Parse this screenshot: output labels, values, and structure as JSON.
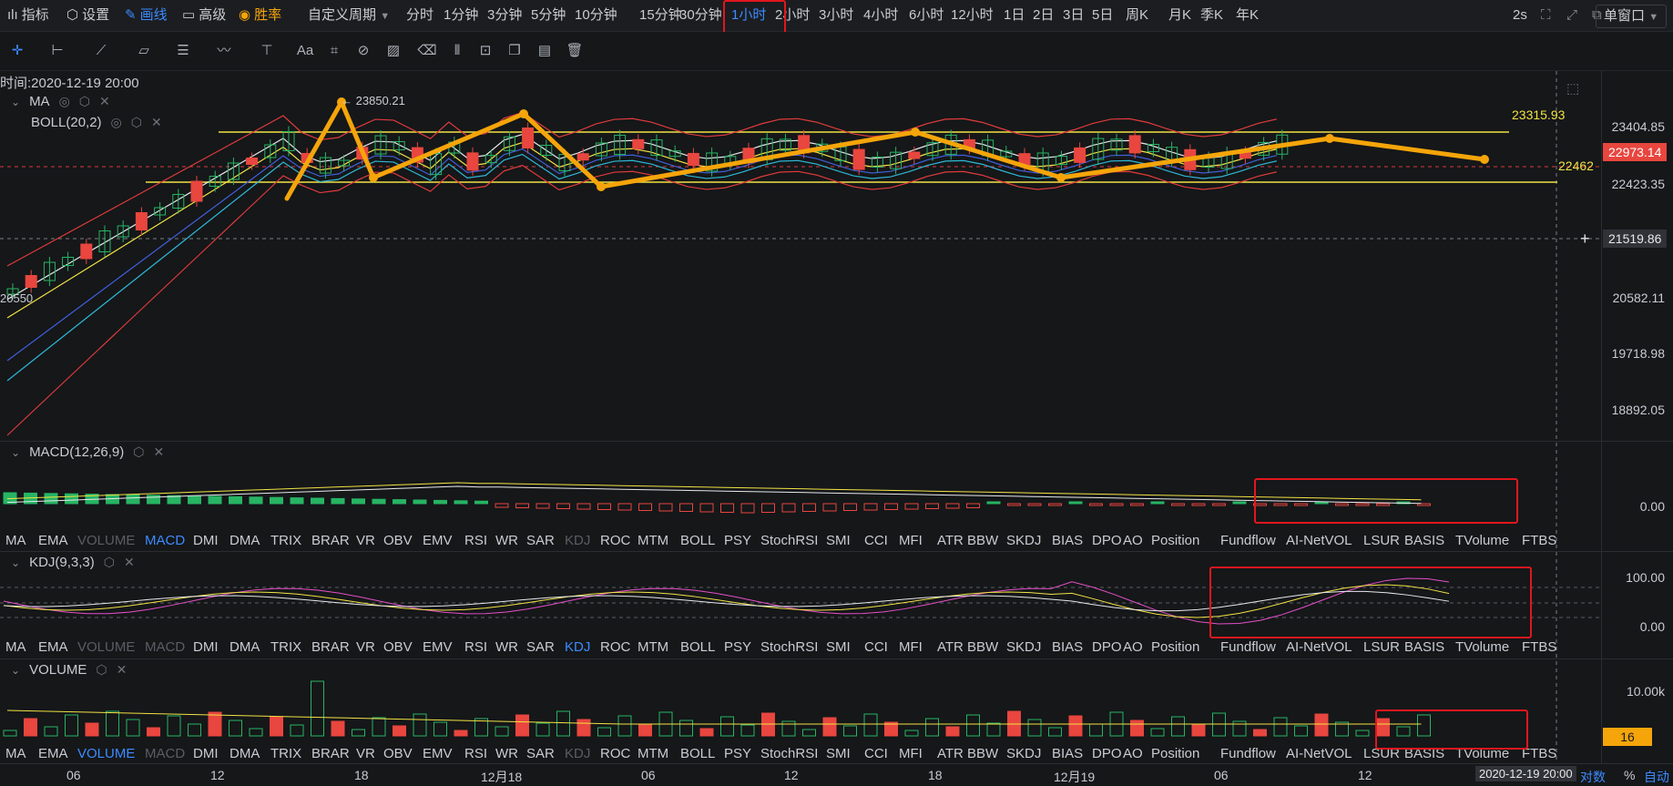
{
  "topbar": {
    "items": [
      {
        "icon": "indicator-icon",
        "label": "指标"
      },
      {
        "icon": "settings-icon",
        "label": "设置"
      },
      {
        "icon": "draw-icon",
        "label": "画线"
      },
      {
        "icon": "advanced-icon",
        "label": "高级"
      },
      {
        "icon": "winrate-icon",
        "label": "胜率"
      }
    ],
    "custom_period": "自定义周期",
    "periods": [
      "分时",
      "1分钟",
      "3分钟",
      "5分钟",
      "10分钟",
      "15分钟",
      "30分钟",
      "1小时",
      "2小时",
      "3小时",
      "4小时",
      "6小时",
      "12小时",
      "1日",
      "2日",
      "3日",
      "5日",
      "周K",
      "月K",
      "季K",
      "年K"
    ],
    "active_period": "1小时",
    "refresh": "2s",
    "window_mode": "单窗口"
  },
  "colors": {
    "up": "#27b463",
    "down": "#e8463e",
    "accent": "#3d8bff",
    "highlight": "#f5a50a",
    "annotation": "#e0171d",
    "level_line": "#f2e244"
  },
  "main_pane": {
    "time_label": "时间:2020-12-19 20:00",
    "ma_label": "MA",
    "boll_label": "BOLL(20,2)",
    "high_annotation": "23850.21",
    "low_annotation": "20550",
    "level_top": "23315.93",
    "level_bottom": "22462",
    "last_price": "22973.14",
    "crosshair_price": "21519.86",
    "price_axis": [
      "23404.85",
      "22423.35",
      "20582.11",
      "19718.98",
      "18892.05"
    ]
  },
  "macd_pane": {
    "title": "MACD(12,26,9)",
    "axis": [
      "0.00"
    ]
  },
  "kdj_pane": {
    "title": "KDJ(9,3,3)",
    "axis": [
      "100.00",
      "0.00"
    ]
  },
  "volume_pane": {
    "title": "VOLUME",
    "axis": [
      "10.00k"
    ],
    "last_volume": "16"
  },
  "indicator_tabs": [
    "MA",
    "EMA",
    "VOLUME",
    "MACD",
    "DMI",
    "DMA",
    "TRIX",
    "BRAR",
    "VR",
    "OBV",
    "EMV",
    "RSI",
    "WR",
    "SAR",
    "KDJ",
    "ROC",
    "MTM",
    "BOLL",
    "PSY",
    "StochRSI",
    "SMI",
    "CCI",
    "MFI",
    "ATR",
    "BBW",
    "SKDJ",
    "BIAS",
    "DPO",
    "AO",
    "Position",
    "Fundflow",
    "AI-NetVOL",
    "LSUR",
    "BASIS",
    "TVolume",
    "FTBS"
  ],
  "time_axis": {
    "labels": [
      "06",
      "12",
      "18",
      "12月18",
      "06",
      "12",
      "18",
      "12月19",
      "06",
      "12"
    ],
    "crosshair_time": "2020-12-19 20:00",
    "scale_mode": "对数",
    "percent": "%",
    "auto": "自动"
  }
}
